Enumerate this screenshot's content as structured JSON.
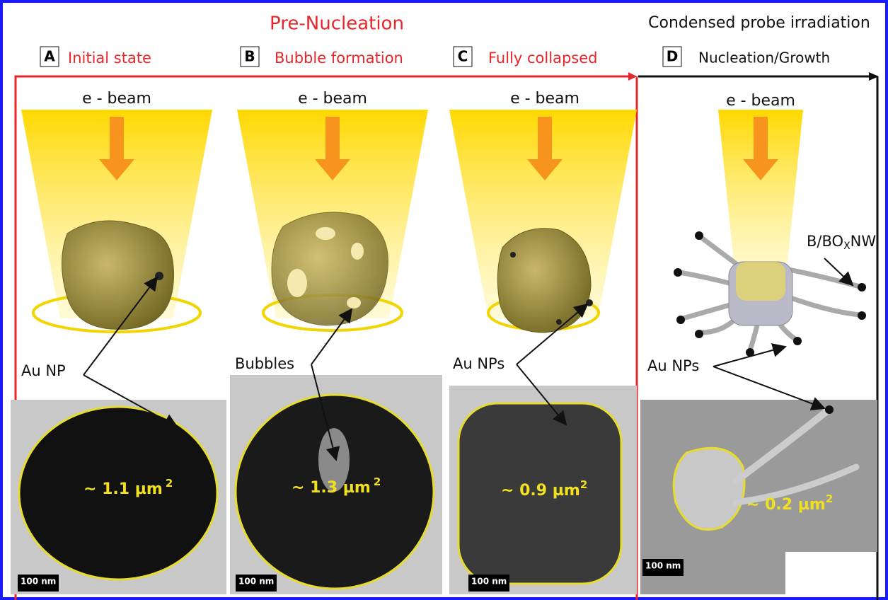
{
  "header": {
    "pre_nucleation": "Pre-Nucleation",
    "condensed": "Condensed probe irradiation"
  },
  "panels": [
    {
      "letter": "A",
      "title": "Initial state",
      "beam": "e - beam",
      "label": "Au NP",
      "area": "~ 1.1 µm",
      "area_exp": "2",
      "scale": "100 nm"
    },
    {
      "letter": "B",
      "title": "Bubble formation",
      "beam": "e - beam",
      "label": "Bubbles",
      "area": "~ 1.3 µm",
      "area_exp": "2",
      "scale": "100 nm"
    },
    {
      "letter": "C",
      "title": "Fully collapsed",
      "beam": "e - beam",
      "label": "Au NPs",
      "area": "~ 0.9 µm",
      "area_exp": "2",
      "scale": "100 nm"
    },
    {
      "letter": "D",
      "title": "Nucleation/Growth",
      "beam": "e - beam",
      "label": "Au NPs",
      "area": "~ 0.2 µm",
      "area_exp": "2",
      "scale": "100 nm"
    }
  ],
  "nanowire": {
    "base": "B/BO",
    "sub": "X",
    "tail": "NW"
  }
}
